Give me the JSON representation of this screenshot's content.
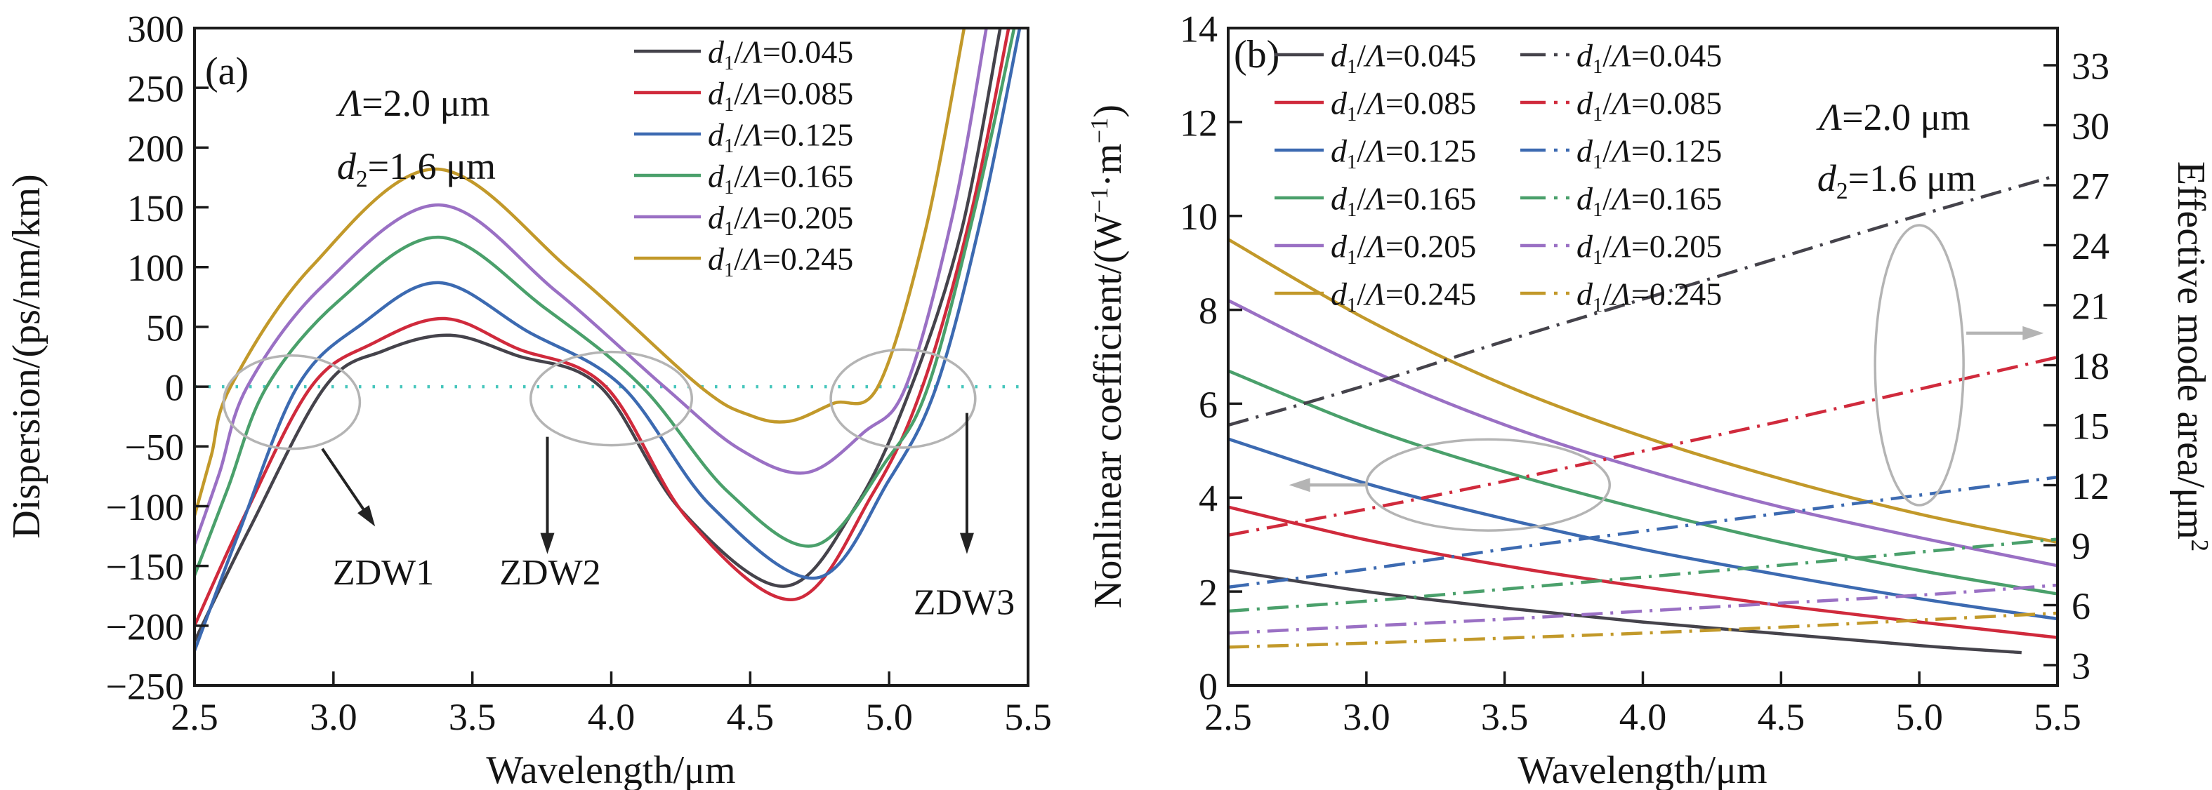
{
  "figure": {
    "panels": [
      "(a)",
      "(b)"
    ],
    "colors": {
      "black": "#45434b",
      "red": "#d02a3c",
      "blue": "#3c6ab1",
      "green": "#4aa06b",
      "purple": "#9a70c4",
      "gold": "#c2992a",
      "zero_line": "#46c6bc",
      "callout_gray": "#b4b4b4",
      "text": "#141414"
    }
  },
  "chart_data": [
    {
      "panel": "a",
      "type": "line",
      "panel_label": "(a)",
      "annotations": [
        {
          "text": "Λ=2.0 μm",
          "x": 590,
          "y": 165
        },
        {
          "text": "d_2=1.6 μm",
          "x": 593,
          "y": 255
        }
      ],
      "xlabel": "Wavelength/μm",
      "ylabel": "Dispersion/(ps/nm/km)",
      "xlim": [
        2.5,
        5.5
      ],
      "ylim": [
        -250,
        300
      ],
      "xticks": [
        "2.5",
        "3.0",
        "3.5",
        "4.0",
        "4.5",
        "5.0",
        "5.5"
      ],
      "ytick_values": [
        300,
        250,
        200,
        150,
        100,
        50,
        0,
        -50,
        -100,
        -150,
        -200,
        -250
      ],
      "ytick_labels": [
        "300",
        "250",
        "200",
        "150",
        "100",
        "50",
        "0",
        "−50",
        "−100",
        "−150",
        "−200",
        "−250"
      ],
      "zero_line": {
        "value": 0,
        "color": "#46c6bc"
      },
      "series": [
        {
          "label": "d_1/Λ=0.045",
          "color": "#45434b",
          "points": [
            [
              2.5,
              -213
            ],
            [
              2.7,
              -118
            ],
            [
              2.97,
              0
            ],
            [
              3.18,
              30
            ],
            [
              3.42,
              43
            ],
            [
              3.66,
              26
            ],
            [
              3.96,
              0
            ],
            [
              4.25,
              -103
            ],
            [
              4.62,
              -167
            ],
            [
              4.88,
              -100
            ],
            [
              5.08,
              0
            ],
            [
              5.26,
              130
            ],
            [
              5.4,
              300
            ]
          ]
        },
        {
          "label": "d_1/Λ=0.085",
          "color": "#d02a3c",
          "points": [
            [
              2.5,
              -200
            ],
            [
              2.68,
              -108
            ],
            [
              2.92,
              0
            ],
            [
              3.14,
              36
            ],
            [
              3.4,
              57
            ],
            [
              3.66,
              32
            ],
            [
              3.98,
              0
            ],
            [
              4.28,
              -112
            ],
            [
              4.66,
              -178
            ],
            [
              4.94,
              -90
            ],
            [
              5.12,
              0
            ],
            [
              5.29,
              140
            ],
            [
              5.43,
              300
            ]
          ]
        },
        {
          "label": "d_1/Λ=0.125",
          "color": "#3c6ab1",
          "points": [
            [
              2.5,
              -221
            ],
            [
              2.66,
              -122
            ],
            [
              2.87,
              0
            ],
            [
              3.1,
              52
            ],
            [
              3.38,
              87
            ],
            [
              3.7,
              46
            ],
            [
              4.04,
              0
            ],
            [
              4.36,
              -100
            ],
            [
              4.74,
              -160
            ],
            [
              5.0,
              -78
            ],
            [
              5.17,
              0
            ],
            [
              5.33,
              140
            ],
            [
              5.47,
              300
            ]
          ]
        },
        {
          "label": "d_1/Λ=0.165",
          "color": "#4aa06b",
          "points": [
            [
              2.5,
              -158
            ],
            [
              2.62,
              -85
            ],
            [
              2.76,
              0
            ],
            [
              3.02,
              72
            ],
            [
              3.38,
              125
            ],
            [
              3.76,
              66
            ],
            [
              4.11,
              0
            ],
            [
              4.42,
              -88
            ],
            [
              4.73,
              -133
            ],
            [
              4.99,
              -62
            ],
            [
              5.14,
              0
            ],
            [
              5.31,
              150
            ],
            [
              5.45,
              300
            ]
          ]
        },
        {
          "label": "d_1/Λ=0.205",
          "color": "#9a70c4",
          "points": [
            [
              2.5,
              -132
            ],
            [
              2.59,
              -72
            ],
            [
              2.69,
              0
            ],
            [
              2.96,
              84
            ],
            [
              3.38,
              152
            ],
            [
              3.8,
              80
            ],
            [
              4.19,
              0
            ],
            [
              4.46,
              -52
            ],
            [
              4.7,
              -72
            ],
            [
              4.91,
              -38
            ],
            [
              5.06,
              0
            ],
            [
              5.23,
              145
            ],
            [
              5.35,
              300
            ]
          ]
        },
        {
          "label": "d_1/Λ=0.245",
          "color": "#c2992a",
          "points": [
            [
              2.5,
              -108
            ],
            [
              2.56,
              -58
            ],
            [
              2.63,
              0
            ],
            [
              2.92,
              100
            ],
            [
              3.37,
              182
            ],
            [
              3.86,
              96
            ],
            [
              4.32,
              0
            ],
            [
              4.5,
              -24
            ],
            [
              4.64,
              -29
            ],
            [
              4.8,
              -14
            ],
            [
              4.96,
              0
            ],
            [
              5.13,
              130
            ],
            [
              5.27,
              300
            ]
          ]
        }
      ],
      "zdw_markers": [
        {
          "label": "ZDW1",
          "label_at": [
            3.18,
            -155
          ],
          "arrow_from": [
            2.96,
            -52
          ],
          "arrow_to": [
            3.15,
            -117
          ]
        },
        {
          "label": "ZDW2",
          "label_at": [
            3.78,
            -155
          ],
          "arrow_from": [
            3.77,
            -42
          ],
          "arrow_to": [
            3.77,
            -140
          ]
        },
        {
          "label": "ZDW3",
          "label_at": [
            5.27,
            -180
          ],
          "arrow_from": [
            5.28,
            -22
          ],
          "arrow_to": [
            5.28,
            -140
          ]
        }
      ],
      "highlight_ellipses": [
        {
          "center": [
            2.85,
            -13
          ],
          "rx": 0.245,
          "ry": 39
        },
        {
          "center": [
            4.0,
            -10
          ],
          "rx": 0.29,
          "ry": 39
        },
        {
          "center": [
            5.05,
            -10
          ],
          "rx": 0.26,
          "ry": 41
        }
      ]
    },
    {
      "panel": "b",
      "type": "line",
      "panel_label": "(b)",
      "annotations": [
        {
          "text": "Λ=2.0 μm",
          "x": 2698,
          "y": 185
        },
        {
          "text": "d_2=1.6 μm",
          "x": 2701,
          "y": 272
        }
      ],
      "xlabel": "Wavelength/μm",
      "ylabel_left": "Nonlinear coefficient/(W^−1^·m^−1^)",
      "ylabel_right": "Effective mode area/μm^2^",
      "xlim": [
        2.5,
        5.5
      ],
      "ylim_left": [
        0,
        14
      ],
      "yticks_left": [
        0,
        2,
        4,
        6,
        8,
        10,
        12,
        14
      ],
      "yticks_right": [
        3,
        6,
        9,
        12,
        15,
        18,
        21,
        24,
        27,
        30,
        33
      ],
      "xticks": [
        "2.5",
        "3.0",
        "3.5",
        "4.0",
        "4.5",
        "5.0",
        "5.5"
      ],
      "series_left": [
        {
          "label": "d_1/Λ=0.045",
          "color": "#45434b",
          "style": "solid",
          "points": [
            [
              2.5,
              2.45
            ],
            [
              3.0,
              2.0
            ],
            [
              3.5,
              1.65
            ],
            [
              4.0,
              1.35
            ],
            [
              4.5,
              1.1
            ],
            [
              5.0,
              0.85
            ],
            [
              5.37,
              0.7
            ]
          ]
        },
        {
          "label": "d_1/Λ=0.085",
          "color": "#d02a3c",
          "style": "solid",
          "points": [
            [
              2.5,
              3.8
            ],
            [
              3.0,
              3.1
            ],
            [
              3.5,
              2.55
            ],
            [
              4.0,
              2.1
            ],
            [
              4.5,
              1.7
            ],
            [
              5.0,
              1.35
            ],
            [
              5.5,
              1.02
            ]
          ]
        },
        {
          "label": "d_1/Λ=0.125",
          "color": "#3c6ab1",
          "style": "solid",
          "points": [
            [
              2.5,
              5.25
            ],
            [
              3.0,
              4.3
            ],
            [
              3.5,
              3.55
            ],
            [
              4.0,
              2.9
            ],
            [
              4.5,
              2.35
            ],
            [
              5.0,
              1.85
            ],
            [
              5.5,
              1.42
            ]
          ]
        },
        {
          "label": "d_1/Λ=0.165",
          "color": "#4aa06b",
          "style": "solid",
          "points": [
            [
              2.5,
              6.7
            ],
            [
              3.0,
              5.5
            ],
            [
              3.5,
              4.55
            ],
            [
              4.0,
              3.75
            ],
            [
              4.5,
              3.05
            ],
            [
              5.0,
              2.45
            ],
            [
              5.5,
              1.95
            ]
          ]
        },
        {
          "label": "d_1/Λ=0.205",
          "color": "#9a70c4",
          "style": "solid",
          "points": [
            [
              2.5,
              8.2
            ],
            [
              3.0,
              6.75
            ],
            [
              3.5,
              5.55
            ],
            [
              4.0,
              4.6
            ],
            [
              4.5,
              3.8
            ],
            [
              5.0,
              3.15
            ],
            [
              5.5,
              2.55
            ]
          ]
        },
        {
          "label": "d_1/Λ=0.245",
          "color": "#c2992a",
          "style": "solid",
          "points": [
            [
              2.5,
              9.5
            ],
            [
              3.0,
              7.8
            ],
            [
              3.5,
              6.4
            ],
            [
              4.0,
              5.3
            ],
            [
              4.5,
              4.4
            ],
            [
              5.0,
              3.65
            ],
            [
              5.5,
              3.05
            ]
          ]
        }
      ],
      "series_right": [
        {
          "label": "d_1/Λ=0.045",
          "color": "#45434b",
          "style": "dashdot",
          "points": [
            [
              2.5,
              15.0
            ],
            [
              3.0,
              17.0
            ],
            [
              3.5,
              19.2
            ],
            [
              4.0,
              21.3
            ],
            [
              4.5,
              23.4
            ],
            [
              5.0,
              25.5
            ],
            [
              5.5,
              27.5
            ]
          ]
        },
        {
          "label": "d_1/Λ=0.085",
          "color": "#d02a3c",
          "style": "dashdot",
          "points": [
            [
              2.5,
              9.5
            ],
            [
              3.0,
              10.8
            ],
            [
              3.5,
              12.2
            ],
            [
              4.0,
              13.7
            ],
            [
              4.5,
              15.2
            ],
            [
              5.0,
              16.8
            ],
            [
              5.5,
              18.4
            ]
          ]
        },
        {
          "label": "d_1/Λ=0.125",
          "color": "#3c6ab1",
          "style": "dashdot",
          "points": [
            [
              2.5,
              6.9
            ],
            [
              3.0,
              7.8
            ],
            [
              3.5,
              8.8
            ],
            [
              4.0,
              9.7
            ],
            [
              4.5,
              10.6
            ],
            [
              5.0,
              11.5
            ],
            [
              5.5,
              12.4
            ]
          ]
        },
        {
          "label": "d_1/Λ=0.165",
          "color": "#4aa06b",
          "style": "dashdot",
          "points": [
            [
              2.5,
              5.7
            ],
            [
              3.0,
              6.2
            ],
            [
              3.5,
              6.8
            ],
            [
              4.0,
              7.4
            ],
            [
              4.5,
              8.0
            ],
            [
              5.0,
              8.65
            ],
            [
              5.5,
              9.3
            ]
          ]
        },
        {
          "label": "d_1/Λ=0.205",
          "color": "#9a70c4",
          "style": "dashdot",
          "points": [
            [
              2.5,
              4.6
            ],
            [
              3.0,
              4.95
            ],
            [
              3.5,
              5.3
            ],
            [
              4.0,
              5.7
            ],
            [
              4.5,
              6.1
            ],
            [
              5.0,
              6.5
            ],
            [
              5.5,
              7.0
            ]
          ]
        },
        {
          "label": "d_1/Λ=0.245",
          "color": "#c2992a",
          "style": "dashdot",
          "points": [
            [
              2.5,
              3.9
            ],
            [
              3.0,
              4.1
            ],
            [
              3.5,
              4.35
            ],
            [
              4.0,
              4.6
            ],
            [
              4.5,
              4.9
            ],
            [
              5.0,
              5.25
            ],
            [
              5.5,
              5.6
            ]
          ]
        }
      ],
      "highlight_ellipses": [
        {
          "axis": "left",
          "center": [
            3.44,
            4.27
          ],
          "rx": 0.44,
          "ry": 0.97
        },
        {
          "axis": "right",
          "center": [
            5.0,
            18.0
          ],
          "rx": 0.16,
          "ry": 7.0
        }
      ],
      "pointer_arrows": [
        {
          "axis": "left",
          "from": [
            3.0,
            4.27
          ],
          "to": [
            2.72,
            4.27
          ]
        },
        {
          "axis": "right",
          "from": [
            5.17,
            19.6
          ],
          "to": [
            5.45,
            19.6
          ]
        }
      ]
    }
  ]
}
